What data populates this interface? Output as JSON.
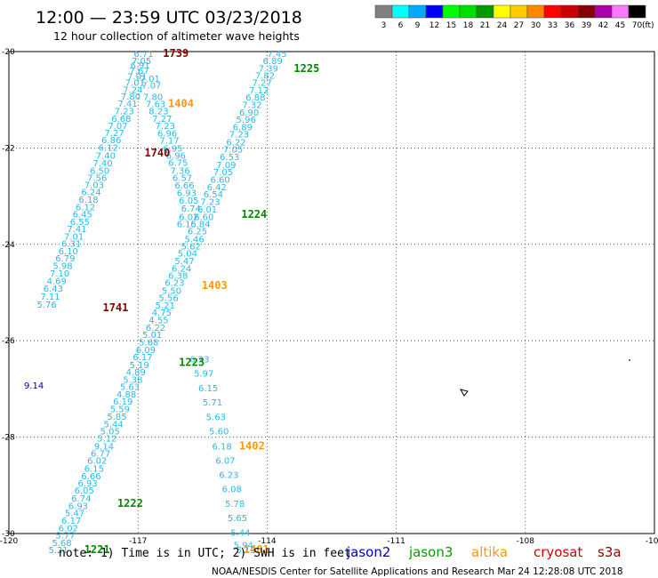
{
  "title": "12:00 — 23:59 UTC 03/23/2018",
  "subtitle": "12 hour collection of altimeter wave heights",
  "note": "note: 1) Time is in UTC; 2) SWH is in feet",
  "credit": "NOAA/NESDIS Center for Satellite Applications and Research    Mar 24 12:28:08 UTC 2018",
  "satellites": [
    {
      "name": "jason2",
      "color": "#0000cc"
    },
    {
      "name": "jason3",
      "color": "#00a000"
    },
    {
      "name": "altika",
      "color": "#ff9900"
    },
    {
      "name": "cryosat",
      "color": "#cc0000"
    },
    {
      "name": "s3a",
      "color": "#990000"
    }
  ],
  "legend": {
    "unit": "(ft)",
    "items": [
      {
        "label": "3",
        "color": "#808080"
      },
      {
        "label": "6",
        "color": "#00ffff"
      },
      {
        "label": "9",
        "color": "#00aaff"
      },
      {
        "label": "12",
        "color": "#0000ff"
      },
      {
        "label": "15",
        "color": "#00ff00"
      },
      {
        "label": "18",
        "color": "#00dd00"
      },
      {
        "label": "21",
        "color": "#009900"
      },
      {
        "label": "24",
        "color": "#ffff00"
      },
      {
        "label": "27",
        "color": "#ffcc00"
      },
      {
        "label": "30",
        "color": "#ff8800"
      },
      {
        "label": "33",
        "color": "#ff0000"
      },
      {
        "label": "36",
        "color": "#cc0000"
      },
      {
        "label": "39",
        "color": "#880000"
      },
      {
        "label": "42",
        "color": "#aa00aa"
      },
      {
        "label": "45",
        "color": "#ff77ff"
      },
      {
        "label": "70",
        "color": "#000000"
      }
    ]
  },
  "chart_data": {
    "type": "scatter",
    "xlim": [
      -120,
      -105
    ],
    "ylim": [
      -30,
      -20
    ],
    "x_ticks": [
      -120,
      -117,
      -114,
      -111,
      -108,
      -105
    ],
    "y_ticks": [
      -20,
      -22,
      -24,
      -26,
      -28,
      -30
    ],
    "colors": {
      "cyan": "#29b9e6",
      "cyanlight": "#33ccee",
      "navy": "#000099",
      "maroon": "#8b0000",
      "orange": "#ff9900",
      "green": "#008800"
    },
    "series": [
      {
        "name": "track-1739-1741",
        "color": "cyan",
        "x": [
          -117.1,
          -117.15,
          -117.18,
          -117.2,
          -117.25,
          -117.3,
          -117.35,
          -117.4,
          -117.47,
          -117.55,
          -117.62,
          -117.7,
          -117.78,
          -117.85,
          -117.92,
          -117.98,
          -118.05,
          -118.12,
          -118.18,
          -118.25,
          -118.32,
          -118.38,
          -118.45,
          -118.52,
          -118.58,
          -118.65,
          -118.72,
          -118.78,
          -118.85,
          -118.92,
          -118.98,
          -119.05,
          -119.12,
          -119.2,
          -119.27,
          -119.35
        ],
        "y": [
          -20.04,
          -20.18,
          -20.28,
          -20.39,
          -20.51,
          -20.64,
          -20.78,
          -20.92,
          -21.07,
          -21.23,
          -21.38,
          -21.53,
          -21.68,
          -21.83,
          -21.98,
          -22.15,
          -22.31,
          -22.46,
          -22.61,
          -22.76,
          -22.91,
          -23.06,
          -23.22,
          -23.37,
          -23.52,
          -23.67,
          -23.83,
          -23.98,
          -24.13,
          -24.28,
          -24.44,
          -24.59,
          -24.75,
          -24.91,
          -25.07,
          -25.24
        ],
        "values": [
          "6.71",
          "7.05",
          "6.91",
          "7.67",
          "7.01",
          "7.01",
          "7.24",
          "7.80",
          "7.41",
          "7.23",
          "6.68",
          "7.07",
          "7.27",
          "6.86",
          "6.12",
          "7.40",
          "7.40",
          "6.50",
          "7.56",
          "7.03",
          "6.24",
          "6.18",
          "6.12",
          "6.45",
          "6.55",
          "7.41",
          "7.01",
          "6.31",
          "6.10",
          "6.79",
          "5.98",
          "7.10",
          "4.69",
          "6.43",
          "7.11",
          "5.76"
        ]
      },
      {
        "name": "track-1740",
        "color": "cyan",
        "x": [
          -116.95,
          -116.92,
          -116.88,
          -116.82,
          -116.75,
          -116.67,
          -116.6,
          -116.55,
          -116.5,
          -116.42,
          -116.35,
          -116.3,
          -116.25,
          -116.2,
          -116.15,
          -116.1,
          -116.05,
          -116.0,
          -116.05,
          -116.1
        ],
        "y": [
          -20.55,
          -20.69,
          -20.93,
          -21.08,
          -21.23,
          -21.38,
          -21.53,
          -21.69,
          -21.84,
          -22.0,
          -22.15,
          -22.3,
          -22.46,
          -22.61,
          -22.77,
          -22.92,
          -23.08,
          -23.25,
          -23.42,
          -23.57
        ],
        "values": [
          "7.01",
          "7.07",
          "7.80",
          "7.63",
          "8.23",
          "7.27",
          "7.23",
          "6.96",
          "7.17",
          "6.95",
          "6.96",
          "6.75",
          "7.36",
          "6.57",
          "6.66",
          "6.93",
          "6.05",
          "6.74",
          "6.02",
          "6.15"
        ]
      },
      {
        "name": "track-1225-1221",
        "color": "cyan",
        "x": [
          -114.0,
          -114.1,
          -114.2,
          -114.28,
          -114.35,
          -114.42,
          -114.5,
          -114.58,
          -114.65,
          -114.72,
          -114.8,
          -114.88,
          -114.95,
          -115.02,
          -115.1,
          -115.18,
          -115.25,
          -115.32,
          -115.4,
          -115.48,
          -115.55,
          -115.62,
          -115.7,
          -115.78,
          -115.85,
          -115.92,
          -116.0,
          -116.08,
          -116.15,
          -116.22,
          -116.3,
          -116.38,
          -116.45,
          -116.52,
          -116.6,
          -116.68,
          -116.75,
          -116.82,
          -116.9,
          -116.98,
          -117.05,
          -117.12,
          -117.2,
          -117.28,
          -117.35,
          -117.42,
          -117.5,
          -117.58,
          -117.65,
          -117.72,
          -117.8,
          -117.88,
          -117.95,
          -118.02,
          -118.1,
          -118.18,
          -118.25,
          -118.32,
          -118.4,
          -118.48,
          -118.55,
          -118.62,
          -118.7,
          -118.78,
          -118.85,
          -118.92,
          -119.0,
          -119.08
        ],
        "y": [
          -20.04,
          -20.18,
          -20.34,
          -20.49,
          -20.64,
          -20.79,
          -20.94,
          -21.1,
          -21.25,
          -21.4,
          -21.56,
          -21.71,
          -21.87,
          -22.02,
          -22.18,
          -22.34,
          -22.49,
          -22.65,
          -22.8,
          -22.95,
          -23.11,
          -23.27,
          -23.42,
          -23.57,
          -23.72,
          -23.88,
          -24.03,
          -24.18,
          -24.34,
          -24.49,
          -24.64,
          -24.79,
          -24.95,
          -25.1,
          -25.26,
          -25.41,
          -25.56,
          -25.72,
          -25.87,
          -26.02,
          -26.18,
          -26.33,
          -26.49,
          -26.64,
          -26.8,
          -26.95,
          -27.1,
          -27.25,
          -27.41,
          -27.56,
          -27.72,
          -27.87,
          -28.02,
          -28.18,
          -28.33,
          -28.48,
          -28.64,
          -28.8,
          -28.95,
          -29.1,
          -29.26,
          -29.42,
          -29.57,
          -29.72,
          -29.88,
          -30.03,
          -30.18,
          -30.33
        ],
        "values": [
          "7.45",
          "6.89",
          "7.39",
          "7.82",
          "7.27",
          "7.12",
          "6.88",
          "7.32",
          "6.90",
          "5.96",
          "6.89",
          "7.23",
          "6.22",
          "7.05",
          "6.53",
          "7.09",
          "7.05",
          "6.60",
          "6.42",
          "6.54",
          "7.23",
          "6.01",
          "6.60",
          "6.84",
          "6.25",
          "5.46",
          "5.62",
          "5.04",
          "5.47",
          "6.24",
          "6.38",
          "6.23",
          "5.50",
          "5.56",
          "5.21",
          "4.75",
          "4.55",
          "6.22",
          "5.01",
          "5.68",
          "6.09",
          "6.17",
          "5.19",
          "4.89",
          "5.38",
          "5.63",
          "4.88",
          "6.19",
          "5.59",
          "5.85",
          "5.44",
          "5.05",
          "5.12",
          "9.14",
          "6.77",
          "6.02",
          "6.15",
          "6.66",
          "6.93",
          "6.05",
          "6.74",
          "6.93",
          "5.47",
          "6.17",
          "6.02",
          "5.77",
          "5.68",
          "5.21"
        ]
      },
      {
        "name": "track-1404-1401",
        "color": "cyan",
        "x": [
          -115.8,
          -115.7,
          -115.6,
          -115.5,
          -115.42,
          -115.35,
          -115.28,
          -115.2,
          -115.12,
          -115.05,
          -114.98,
          -114.92,
          -114.85,
          -114.78,
          -114.72
        ],
        "y": [
          -26.37,
          -26.67,
          -26.97,
          -27.27,
          -27.57,
          -27.87,
          -28.18,
          -28.48,
          -28.77,
          -29.07,
          -29.37,
          -29.67,
          -29.97,
          -30.23,
          -30.33
        ],
        "values": [
          "6.23",
          "5.97",
          "6.15",
          "5.71",
          "5.63",
          "5.60",
          "6.18",
          "6.07",
          "6.23",
          "6.08",
          "5.78",
          "5.65",
          "5.44",
          "5.94",
          "5.13"
        ]
      }
    ],
    "track_labels": [
      {
        "text": "1739",
        "x": -116.42,
        "y": -20.04,
        "color": "maroon"
      },
      {
        "text": "1404",
        "x": -116.3,
        "y": -21.08,
        "color": "orange"
      },
      {
        "text": "1740",
        "x": -116.85,
        "y": -22.1,
        "color": "maroon"
      },
      {
        "text": "1741",
        "x": -117.82,
        "y": -25.31,
        "color": "maroon"
      },
      {
        "text": "1225",
        "x": -113.38,
        "y": -20.35,
        "color": "green"
      },
      {
        "text": "1224",
        "x": -114.6,
        "y": -23.38,
        "color": "green"
      },
      {
        "text": "1403",
        "x": -115.52,
        "y": -24.85,
        "color": "orange"
      },
      {
        "text": "1223",
        "x": -116.05,
        "y": -26.45,
        "color": "green"
      },
      {
        "text": "1402",
        "x": -114.65,
        "y": -28.18,
        "color": "orange"
      },
      {
        "text": "1222",
        "x": -117.48,
        "y": -29.37,
        "color": "green"
      },
      {
        "text": "1221",
        "x": -118.25,
        "y": -30.33,
        "color": "green"
      },
      {
        "text": "1401",
        "x": -114.55,
        "y": -30.33,
        "color": "orange"
      }
    ],
    "navy_values": [
      {
        "text": "9.14",
        "x": -119.65,
        "y": -26.92
      }
    ]
  }
}
